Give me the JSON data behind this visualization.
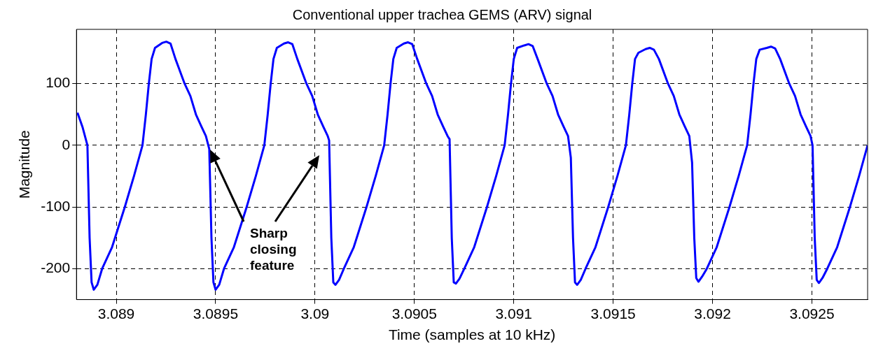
{
  "chart_data": {
    "type": "line",
    "title": "Conventional upper trachea GEMS (ARV) signal",
    "xlabel": "Time (samples at 10 kHz)",
    "ylabel": "Magnitude",
    "annotations": [
      "Sharp closing feature"
    ],
    "xlim": [
      3.0888,
      3.09278
    ],
    "xticks": [
      3.089,
      3.0895,
      3.09,
      3.0905,
      3.091,
      3.0915,
      3.092,
      3.0925
    ],
    "ylim": [
      -250,
      188
    ],
    "yticks": [
      -200,
      -100,
      0,
      100
    ],
    "grid": true,
    "legend": false,
    "marker": "none",
    "line_style": "solid",
    "series": [
      {
        "color": "#0000ff",
        "x": [
          3.088805,
          3.08883,
          3.088855,
          3.088866,
          3.088876,
          3.088887,
          3.088905,
          3.088929,
          3.088979,
          3.089043,
          3.089089,
          3.089132,
          3.089149,
          3.089164,
          3.089178,
          3.089195,
          3.089231,
          3.089252,
          3.089273,
          3.089298,
          3.089344,
          3.089373,
          3.089401,
          3.089429,
          3.089451,
          3.089468,
          3.089479,
          3.089489,
          3.0895,
          3.089518,
          3.089542,
          3.089592,
          3.089656,
          3.089702,
          3.089745,
          3.089762,
          3.089777,
          3.089791,
          3.089808,
          3.089844,
          3.089865,
          3.089886,
          3.089911,
          3.089957,
          3.089986,
          3.090014,
          3.090042,
          3.090064,
          3.090071,
          3.090082,
          3.090092,
          3.090103,
          3.090121,
          3.090145,
          3.090195,
          3.090259,
          3.090305,
          3.090348,
          3.090365,
          3.09038,
          3.090394,
          3.090411,
          3.090447,
          3.090468,
          3.090489,
          3.090514,
          3.09056,
          3.090589,
          3.090617,
          3.090645,
          3.090667,
          3.090677,
          3.090688,
          3.090698,
          3.090709,
          3.090727,
          3.090751,
          3.090801,
          3.090865,
          3.090911,
          3.090954,
          3.090971,
          3.090986,
          3.091,
          3.091017,
          3.091053,
          3.091074,
          3.091095,
          3.09112,
          3.091166,
          3.091195,
          3.091223,
          3.091251,
          3.091273,
          3.091287,
          3.091298,
          3.091308,
          3.091319,
          3.091337,
          3.091361,
          3.091411,
          3.091475,
          3.091521,
          3.091564,
          3.091581,
          3.091596,
          3.09161,
          3.091627,
          3.091663,
          3.091684,
          3.091705,
          3.09173,
          3.091776,
          3.091805,
          3.091833,
          3.091861,
          3.091883,
          3.091897,
          3.091908,
          3.091918,
          3.091929,
          3.091947,
          3.091971,
          3.092021,
          3.092085,
          3.092131,
          3.092174,
          3.092191,
          3.092206,
          3.09222,
          3.092237,
          3.092273,
          3.092294,
          3.092315,
          3.09234,
          3.092386,
          3.092415,
          3.092443,
          3.092471,
          3.092493,
          3.092503,
          3.092514,
          3.092524,
          3.092535,
          3.092553,
          3.092577,
          3.092627,
          3.092691,
          3.092737,
          3.09278
        ],
        "values": [
          53,
          30,
          0,
          -150,
          -222,
          -234,
          -226,
          -200,
          -165,
          -100,
          -50,
          0,
          50,
          100,
          140,
          158,
          166,
          168,
          165,
          140,
          100,
          80,
          50,
          30,
          15,
          -6,
          -150,
          -222,
          -234,
          -226,
          -200,
          -165,
          -100,
          -50,
          0,
          50,
          100,
          140,
          158,
          165,
          167,
          164,
          140,
          100,
          80,
          50,
          30,
          15,
          8,
          -150,
          -222,
          -226,
          -218,
          -200,
          -165,
          -100,
          -50,
          0,
          50,
          100,
          140,
          158,
          165,
          167,
          164,
          140,
          100,
          80,
          50,
          30,
          15,
          10,
          -150,
          -222,
          -224,
          -216,
          -200,
          -165,
          -100,
          -50,
          0,
          50,
          100,
          140,
          158,
          162,
          164,
          161,
          140,
          100,
          80,
          50,
          30,
          15,
          -20,
          -150,
          -222,
          -226,
          -218,
          -200,
          -165,
          -100,
          -50,
          0,
          50,
          100,
          140,
          150,
          156,
          158,
          155,
          140,
          100,
          80,
          50,
          30,
          15,
          -28,
          -150,
          -215,
          -221,
          -213,
          -200,
          -165,
          -100,
          -50,
          0,
          50,
          100,
          140,
          155,
          158,
          160,
          157,
          140,
          100,
          80,
          50,
          30,
          15,
          0,
          -150,
          -218,
          -223,
          -215,
          -200,
          -165,
          -100,
          -50,
          0
        ]
      }
    ]
  }
}
